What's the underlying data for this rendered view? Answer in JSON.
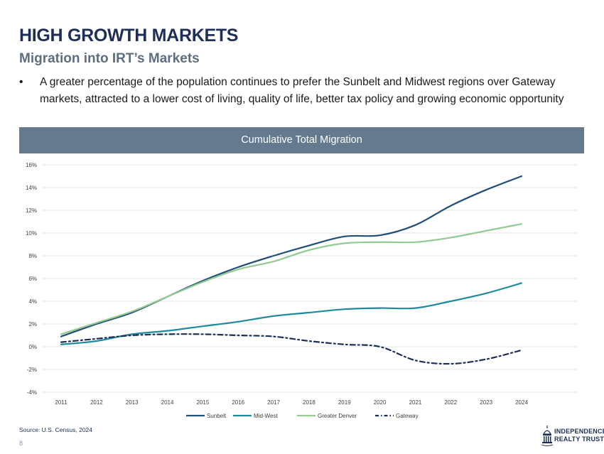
{
  "header": {
    "title": "HIGH GROWTH MARKETS",
    "subtitle": "Migration into IRT’s Markets"
  },
  "bullet": {
    "marker": "•",
    "text": "A greater percentage of the population continues to prefer the Sunbelt and Midwest regions over Gateway markets, attracted to a lower cost of living, quality of life, better tax policy and growing economic opportunity"
  },
  "banner": {
    "label": "Cumulative Total Migration"
  },
  "chart_data": {
    "type": "line",
    "title": "Cumulative Total Migration",
    "xlabel": "",
    "ylabel": "",
    "categories": [
      "2011",
      "2012",
      "2013",
      "2014",
      "2015",
      "2016",
      "2017",
      "2018",
      "2019",
      "2020",
      "2021",
      "2022",
      "2023",
      "2024"
    ],
    "ylim": [
      -4,
      16
    ],
    "yticks": [
      16,
      14,
      12,
      10,
      8,
      6,
      4,
      2,
      0,
      -2,
      -4
    ],
    "ytick_labels": [
      "16%",
      "14%",
      "12%",
      "10%",
      "8%",
      "6%",
      "4%",
      "2%",
      "0%",
      "-2%",
      "-4%"
    ],
    "grid": true,
    "legend_position": "bottom",
    "series": [
      {
        "name": "Sunbelt",
        "color": "#1f4e79",
        "style": "solid",
        "values": [
          0.9,
          2.0,
          3.0,
          4.4,
          5.8,
          7.0,
          8.0,
          8.9,
          9.7,
          9.8,
          10.7,
          12.4,
          13.8,
          15.0
        ]
      },
      {
        "name": "Mid-West",
        "color": "#1f8a9e",
        "style": "solid",
        "values": [
          0.2,
          0.5,
          1.1,
          1.4,
          1.8,
          2.2,
          2.7,
          3.0,
          3.3,
          3.4,
          3.4,
          4.0,
          4.7,
          5.6
        ]
      },
      {
        "name": "Greater Denver",
        "color": "#93c993",
        "style": "solid",
        "values": [
          1.1,
          2.1,
          3.1,
          4.4,
          5.7,
          6.8,
          7.5,
          8.5,
          9.1,
          9.2,
          9.2,
          9.6,
          10.2,
          10.8
        ]
      },
      {
        "name": "Gateway",
        "color": "#1d2f57",
        "style": "dashdot",
        "values": [
          0.4,
          0.7,
          1.0,
          1.1,
          1.1,
          1.0,
          0.9,
          0.5,
          0.2,
          0.0,
          -1.2,
          -1.5,
          -1.1,
          -0.3
        ]
      }
    ]
  },
  "footer": {
    "source": "Source: U.S. Census, 2024",
    "page": "8",
    "logo_line1": "INDEPENDENCE",
    "logo_line2": "REALTY TRUST"
  }
}
